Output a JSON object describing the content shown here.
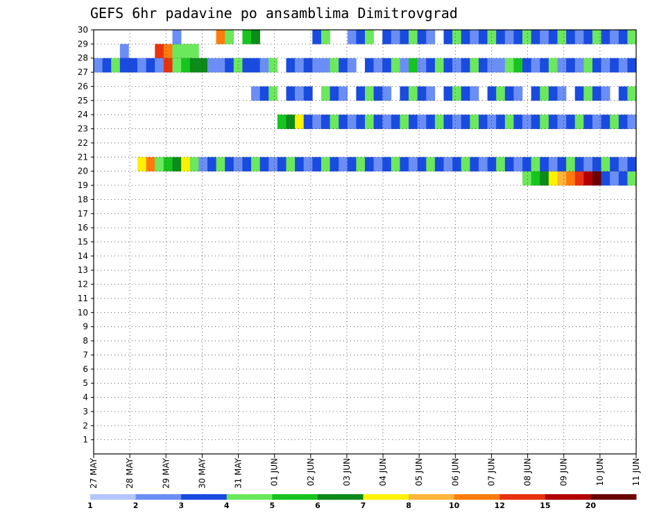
{
  "chart_data": {
    "type": "heatmap",
    "title": "GEFS 6hr padavine po ansamblima Dimitrovgrad",
    "x_tick_labels": [
      "27 MAY",
      "28 MAY",
      "29 MAY",
      "30 MAY",
      "31 MAY",
      "01 JUN",
      "02 JUN",
      "03 JUN",
      "04 JUN",
      "05 JUN",
      "06 JUN",
      "07 JUN",
      "08 JUN",
      "09 JUN",
      "10 JUN",
      "11 JUN"
    ],
    "y_tick_labels": [
      "1",
      "2",
      "3",
      "4",
      "5",
      "6",
      "7",
      "8",
      "9",
      "10",
      "11",
      "12",
      "13",
      "14",
      "15",
      "16",
      "17",
      "18",
      "19",
      "20",
      "21",
      "22",
      "23",
      "24",
      "25",
      "26",
      "27",
      "28",
      "29",
      "30"
    ],
    "ylim": [
      0,
      30
    ],
    "time_steps": 62,
    "grid": "dotted",
    "legend": {
      "placement": "bottom",
      "colors": [
        "#b3c6ff",
        "#6b8ef5",
        "#1a4be0",
        "#6be85b",
        "#17c41f",
        "#0c8a1a",
        "#fff200",
        "#ffb43a",
        "#ff7c0c",
        "#e8330f",
        "#b20000",
        "#6b0000"
      ],
      "labels": [
        "1",
        "2",
        "3",
        "4",
        "5",
        "6",
        "7",
        "8",
        "10",
        "12",
        "15",
        "20"
      ]
    },
    "cells": [
      [
        3,
        28,
        1
      ],
      [
        5,
        27,
        1
      ],
      [
        7,
        28,
        9
      ],
      [
        8,
        28,
        8
      ],
      [
        9,
        28,
        3
      ],
      [
        10,
        28,
        3
      ],
      [
        11,
        28,
        3
      ],
      [
        0,
        27,
        1
      ],
      [
        1,
        27,
        2
      ],
      [
        2,
        27,
        3
      ],
      [
        3,
        27,
        2
      ],
      [
        4,
        27,
        2
      ],
      [
        5,
        27,
        1
      ],
      [
        6,
        27,
        2
      ],
      [
        7,
        27,
        1
      ],
      [
        8,
        27,
        9
      ],
      [
        9,
        27,
        3
      ],
      [
        10,
        27,
        4
      ],
      [
        11,
        27,
        5
      ],
      [
        12,
        27,
        5
      ],
      [
        13,
        27,
        1
      ],
      [
        14,
        27,
        1
      ],
      [
        15,
        27,
        2
      ],
      [
        16,
        27,
        3
      ],
      [
        17,
        27,
        2
      ],
      [
        18,
        27,
        2
      ],
      [
        19,
        27,
        1
      ],
      [
        20,
        27,
        3
      ],
      [
        22,
        27,
        2
      ],
      [
        23,
        27,
        1
      ],
      [
        24,
        27,
        2
      ],
      [
        25,
        27,
        1
      ],
      [
        26,
        27,
        1
      ],
      [
        27,
        27,
        3
      ],
      [
        28,
        27,
        2
      ],
      [
        29,
        27,
        1
      ],
      [
        31,
        27,
        2
      ],
      [
        32,
        27,
        1
      ],
      [
        33,
        27,
        2
      ],
      [
        34,
        27,
        3
      ],
      [
        35,
        27,
        1
      ],
      [
        36,
        27,
        4
      ],
      [
        37,
        27,
        1
      ],
      [
        38,
        27,
        2
      ],
      [
        39,
        27,
        3
      ],
      [
        40,
        27,
        2
      ],
      [
        41,
        27,
        1
      ],
      [
        42,
        27,
        2
      ],
      [
        43,
        27,
        3
      ],
      [
        44,
        27,
        2
      ],
      [
        45,
        27,
        1
      ],
      [
        46,
        27,
        1
      ],
      [
        47,
        27,
        3
      ],
      [
        48,
        27,
        4
      ],
      [
        49,
        27,
        2
      ],
      [
        50,
        27,
        1
      ],
      [
        51,
        27,
        2
      ],
      [
        52,
        27,
        3
      ],
      [
        53,
        27,
        1
      ],
      [
        54,
        27,
        2
      ],
      [
        55,
        27,
        1
      ],
      [
        56,
        27,
        3
      ],
      [
        57,
        27,
        2
      ],
      [
        58,
        27,
        1
      ],
      [
        59,
        27,
        2
      ],
      [
        60,
        27,
        1
      ],
      [
        61,
        27,
        2
      ],
      [
        9,
        29,
        1
      ],
      [
        14,
        29,
        8
      ],
      [
        15,
        29,
        3
      ],
      [
        17,
        29,
        4
      ],
      [
        18,
        29,
        5
      ],
      [
        25,
        29,
        2
      ],
      [
        26,
        29,
        3
      ],
      [
        29,
        29,
        1
      ],
      [
        30,
        29,
        2
      ],
      [
        31,
        29,
        3
      ],
      [
        33,
        29,
        2
      ],
      [
        34,
        29,
        1
      ],
      [
        35,
        29,
        2
      ],
      [
        36,
        29,
        3
      ],
      [
        37,
        29,
        2
      ],
      [
        38,
        29,
        1
      ],
      [
        40,
        29,
        2
      ],
      [
        41,
        29,
        3
      ],
      [
        42,
        29,
        2
      ],
      [
        43,
        29,
        1
      ],
      [
        44,
        29,
        2
      ],
      [
        45,
        29,
        3
      ],
      [
        46,
        29,
        2
      ],
      [
        47,
        29,
        1
      ],
      [
        48,
        29,
        2
      ],
      [
        49,
        29,
        3
      ],
      [
        50,
        29,
        2
      ],
      [
        51,
        29,
        1
      ],
      [
        52,
        29,
        2
      ],
      [
        53,
        29,
        3
      ],
      [
        54,
        29,
        2
      ],
      [
        55,
        29,
        1
      ],
      [
        56,
        29,
        2
      ],
      [
        57,
        29,
        3
      ],
      [
        58,
        29,
        2
      ],
      [
        59,
        29,
        1
      ],
      [
        60,
        29,
        2
      ],
      [
        61,
        29,
        3
      ],
      [
        18,
        25,
        1
      ],
      [
        19,
        25,
        2
      ],
      [
        20,
        25,
        3
      ],
      [
        22,
        25,
        2
      ],
      [
        23,
        25,
        1
      ],
      [
        24,
        25,
        2
      ],
      [
        26,
        25,
        3
      ],
      [
        27,
        25,
        2
      ],
      [
        28,
        25,
        1
      ],
      [
        30,
        25,
        2
      ],
      [
        31,
        25,
        3
      ],
      [
        32,
        25,
        2
      ],
      [
        33,
        25,
        1
      ],
      [
        35,
        25,
        2
      ],
      [
        36,
        25,
        3
      ],
      [
        37,
        25,
        2
      ],
      [
        38,
        25,
        1
      ],
      [
        40,
        25,
        2
      ],
      [
        41,
        25,
        3
      ],
      [
        42,
        25,
        2
      ],
      [
        43,
        25,
        1
      ],
      [
        45,
        25,
        2
      ],
      [
        46,
        25,
        3
      ],
      [
        47,
        25,
        2
      ],
      [
        48,
        25,
        1
      ],
      [
        50,
        25,
        2
      ],
      [
        51,
        25,
        3
      ],
      [
        52,
        25,
        2
      ],
      [
        53,
        25,
        1
      ],
      [
        55,
        25,
        2
      ],
      [
        56,
        25,
        3
      ],
      [
        57,
        25,
        2
      ],
      [
        58,
        25,
        1
      ],
      [
        60,
        25,
        2
      ],
      [
        61,
        25,
        3
      ],
      [
        21,
        23,
        4
      ],
      [
        22,
        23,
        5
      ],
      [
        23,
        23,
        6
      ],
      [
        24,
        23,
        2
      ],
      [
        25,
        23,
        1
      ],
      [
        26,
        23,
        2
      ],
      [
        27,
        23,
        3
      ],
      [
        28,
        23,
        2
      ],
      [
        29,
        23,
        1
      ],
      [
        30,
        23,
        2
      ],
      [
        31,
        23,
        3
      ],
      [
        32,
        23,
        2
      ],
      [
        33,
        23,
        1
      ],
      [
        34,
        23,
        2
      ],
      [
        35,
        23,
        3
      ],
      [
        36,
        23,
        2
      ],
      [
        37,
        23,
        1
      ],
      [
        38,
        23,
        2
      ],
      [
        39,
        23,
        3
      ],
      [
        40,
        23,
        2
      ],
      [
        41,
        23,
        1
      ],
      [
        42,
        23,
        2
      ],
      [
        43,
        23,
        3
      ],
      [
        44,
        23,
        2
      ],
      [
        45,
        23,
        1
      ],
      [
        46,
        23,
        2
      ],
      [
        47,
        23,
        3
      ],
      [
        48,
        23,
        2
      ],
      [
        49,
        23,
        1
      ],
      [
        50,
        23,
        2
      ],
      [
        51,
        23,
        3
      ],
      [
        52,
        23,
        2
      ],
      [
        53,
        23,
        1
      ],
      [
        54,
        23,
        2
      ],
      [
        55,
        23,
        3
      ],
      [
        56,
        23,
        2
      ],
      [
        57,
        23,
        1
      ],
      [
        58,
        23,
        2
      ],
      [
        59,
        23,
        3
      ],
      [
        60,
        23,
        2
      ],
      [
        61,
        23,
        1
      ],
      [
        49,
        19,
        3
      ],
      [
        50,
        19,
        4
      ],
      [
        51,
        19,
        5
      ],
      [
        52,
        19,
        6
      ],
      [
        53,
        19,
        7
      ],
      [
        54,
        19,
        8
      ],
      [
        55,
        19,
        9
      ],
      [
        56,
        19,
        10
      ],
      [
        57,
        19,
        11
      ],
      [
        58,
        19,
        2
      ],
      [
        59,
        19,
        1
      ],
      [
        60,
        19,
        2
      ],
      [
        61,
        19,
        3
      ],
      [
        5,
        20,
        6
      ],
      [
        6,
        20,
        8
      ],
      [
        7,
        20,
        3
      ],
      [
        8,
        20,
        4
      ],
      [
        9,
        20,
        5
      ],
      [
        10,
        20,
        6
      ],
      [
        11,
        20,
        3
      ],
      [
        12,
        20,
        1
      ],
      [
        13,
        20,
        2
      ],
      [
        14,
        20,
        3
      ],
      [
        15,
        20,
        2
      ],
      [
        16,
        20,
        1
      ],
      [
        17,
        20,
        2
      ],
      [
        18,
        20,
        3
      ],
      [
        19,
        20,
        2
      ],
      [
        20,
        20,
        1
      ],
      [
        21,
        20,
        2
      ],
      [
        22,
        20,
        3
      ],
      [
        23,
        20,
        2
      ],
      [
        24,
        20,
        1
      ],
      [
        25,
        20,
        2
      ],
      [
        26,
        20,
        3
      ],
      [
        27,
        20,
        2
      ],
      [
        28,
        20,
        1
      ],
      [
        29,
        20,
        2
      ],
      [
        30,
        20,
        3
      ],
      [
        31,
        20,
        2
      ],
      [
        32,
        20,
        1
      ],
      [
        33,
        20,
        2
      ],
      [
        34,
        20,
        3
      ],
      [
        35,
        20,
        2
      ],
      [
        36,
        20,
        1
      ],
      [
        37,
        20,
        2
      ],
      [
        38,
        20,
        3
      ],
      [
        39,
        20,
        2
      ],
      [
        40,
        20,
        1
      ],
      [
        41,
        20,
        2
      ],
      [
        42,
        20,
        3
      ],
      [
        43,
        20,
        2
      ],
      [
        44,
        20,
        1
      ],
      [
        45,
        20,
        2
      ],
      [
        46,
        20,
        3
      ],
      [
        47,
        20,
        2
      ],
      [
        48,
        20,
        1
      ],
      [
        49,
        20,
        2
      ],
      [
        50,
        20,
        3
      ],
      [
        51,
        20,
        2
      ],
      [
        52,
        20,
        1
      ],
      [
        53,
        20,
        2
      ],
      [
        54,
        20,
        3
      ],
      [
        55,
        20,
        2
      ],
      [
        56,
        20,
        1
      ],
      [
        57,
        20,
        2
      ],
      [
        58,
        20,
        3
      ],
      [
        59,
        20,
        2
      ],
      [
        60,
        20,
        1
      ],
      [
        61,
        20,
        2
      ]
    ]
  }
}
